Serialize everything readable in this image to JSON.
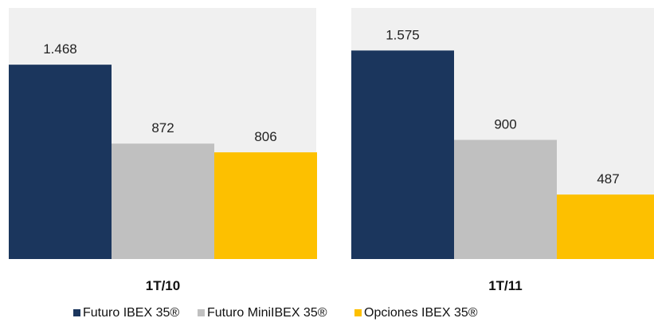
{
  "chart_data": {
    "type": "bar",
    "categories": [
      "1T/10",
      "1T/11"
    ],
    "series": [
      {
        "name": "Futuro IBEX 35®",
        "color": "#1b365d",
        "values": [
          1468,
          1575
        ],
        "labels": [
          "1.468",
          "1.575"
        ]
      },
      {
        "name": "Futuro MiniIBEX 35®",
        "color": "#c0c0c0",
        "values": [
          872,
          900
        ],
        "labels": [
          "872",
          "900"
        ]
      },
      {
        "name": "Opciones IBEX 35®",
        "color": "#fdc000",
        "values": [
          806,
          487
        ],
        "labels": [
          "806",
          "487"
        ]
      }
    ],
    "ylim": [
      0,
      1800
    ],
    "grid": false,
    "legend_position": "bottom"
  }
}
